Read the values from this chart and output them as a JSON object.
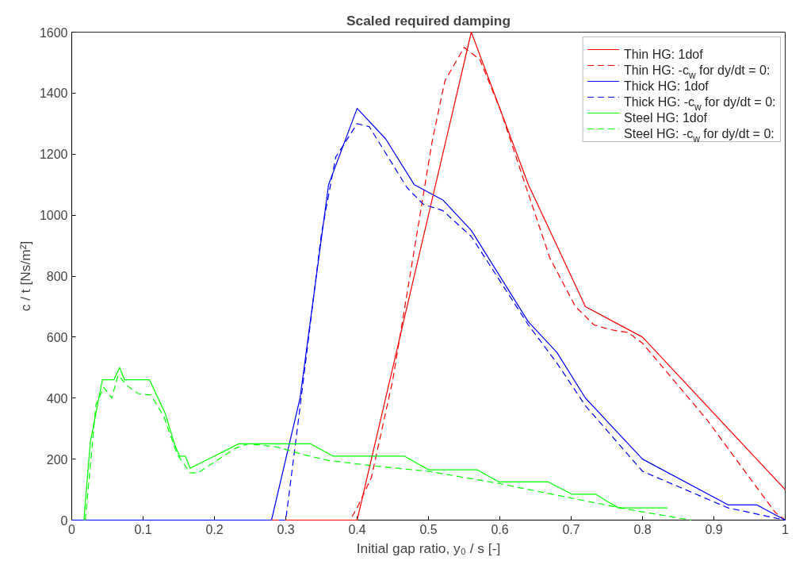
{
  "chart_data": {
    "type": "line",
    "title": "Scaled required damping",
    "xlabel": "Initial gap ratio, y₀ / s [-]",
    "ylabel": "c / t [Ns/m²]",
    "xlim": [
      0,
      1
    ],
    "ylim": [
      0,
      1600
    ],
    "xticks": [
      0,
      0.1,
      0.2,
      0.3,
      0.4,
      0.5,
      0.6,
      0.7,
      0.8,
      0.9,
      1
    ],
    "yticks": [
      0,
      200,
      400,
      600,
      800,
      1000,
      1200,
      1400,
      1600
    ],
    "grid": false,
    "legend": "top right",
    "marker": "none",
    "series": [
      {
        "name": "Thin HG: 1dof",
        "color": "#ff0000",
        "line_style": "solid",
        "x": [
          0.28,
          0.4,
          0.56,
          0.64,
          0.72,
          0.8,
          1.0
        ],
        "values": [
          0,
          0,
          1600,
          1100,
          700,
          600,
          100
        ]
      },
      {
        "name": "Thin HG: -c$_{w}$ for dy/dt = 0:",
        "color": "#ff0000",
        "line_style": "dashed",
        "x": [
          0.28,
          0.39,
          0.4,
          0.42,
          0.45,
          0.48,
          0.505,
          0.523,
          0.55,
          0.572,
          0.6,
          0.67,
          0.706,
          0.732,
          0.754,
          0.78,
          0.8,
          0.89,
          0.986,
          1.0
        ],
        "values": [
          0,
          0,
          40,
          140,
          460,
          885,
          1240,
          1440,
          1550,
          1510,
          1350,
          860,
          700,
          640,
          625,
          615,
          580,
          330,
          25,
          0
        ]
      },
      {
        "name": "Thick HG: 1dof",
        "color": "#0000ff",
        "line_style": "solid",
        "x": [
          0,
          0.28,
          0.32,
          0.36,
          0.4,
          0.44,
          0.48,
          0.52,
          0.56,
          0.64,
          0.68,
          0.72,
          0.8,
          0.92,
          0.96,
          1.0
        ],
        "values": [
          0,
          0,
          400,
          1100,
          1350,
          1250,
          1100,
          1050,
          950,
          650,
          550,
          400,
          200,
          50,
          50,
          0
        ]
      },
      {
        "name": "Thick HG: -c$_{w}$ for dy/dt = 0:",
        "color": "#0000ff",
        "line_style": "dashed",
        "x": [
          0.29,
          0.3,
          0.32,
          0.35,
          0.37,
          0.4,
          0.417,
          0.47,
          0.493,
          0.52,
          0.56,
          0.64,
          0.68,
          0.72,
          0.8,
          0.92,
          1.0
        ],
        "values": [
          0,
          0,
          370,
          940,
          1190,
          1300,
          1290,
          1090,
          1035,
          1015,
          930,
          640,
          515,
          375,
          160,
          40,
          0
        ]
      },
      {
        "name": "Steel HG: 1dof",
        "color": "#00ff00",
        "line_style": "solid",
        "x": [
          0.017,
          0.026,
          0.043,
          0.059,
          0.067,
          0.074,
          0.109,
          0.131,
          0.144,
          0.151,
          0.159,
          0.166,
          0.234,
          0.335,
          0.366,
          0.466,
          0.5,
          0.568,
          0.599,
          0.668,
          0.701,
          0.734,
          0.766,
          0.835
        ],
        "values": [
          0,
          255,
          460,
          460,
          500,
          460,
          460,
          350,
          250,
          210,
          210,
          170,
          250,
          250,
          210,
          210,
          165,
          165,
          125,
          125,
          85,
          85,
          40,
          40
        ]
      },
      {
        "name": "Steel HG: -c$_{w}$ for dy/dt = 0:",
        "color": "#00ff00",
        "line_style": "dashed",
        "x": [
          0.019,
          0.034,
          0.045,
          0.056,
          0.065,
          0.078,
          0.093,
          0.111,
          0.129,
          0.148,
          0.166,
          0.177,
          0.229,
          0.247,
          0.287,
          0.324,
          0.361,
          0.434,
          0.5,
          0.599,
          0.662,
          0.78,
          0.868
        ],
        "values": [
          0,
          380,
          435,
          400,
          475,
          440,
          415,
          410,
          340,
          215,
          155,
          155,
          235,
          250,
          240,
          215,
          195,
          175,
          160,
          120,
          90,
          35,
          0
        ]
      }
    ]
  }
}
